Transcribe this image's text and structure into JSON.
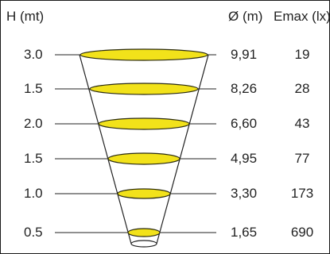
{
  "headers": {
    "height": "H (mt)",
    "diameter": "Ø (m)",
    "emax": "Emax (lx)"
  },
  "rows": [
    {
      "height": "3.0",
      "diameter": "9,91",
      "emax": "19"
    },
    {
      "height": "1.5",
      "diameter": "8,26",
      "emax": "28"
    },
    {
      "height": "2.0",
      "diameter": "6,60",
      "emax": "43"
    },
    {
      "height": "1.5",
      "diameter": "4,95",
      "emax": "77"
    },
    {
      "height": "1.0",
      "diameter": "3,30",
      "emax": "173"
    },
    {
      "height": "0.5",
      "diameter": "1,65",
      "emax": "690"
    }
  ],
  "colors": {
    "ellipse_fill": "#f2e21a",
    "ellipse_stroke": "#2a2a10",
    "line": "#222222",
    "bottom_ellipse_fill": "#ffffff"
  }
}
